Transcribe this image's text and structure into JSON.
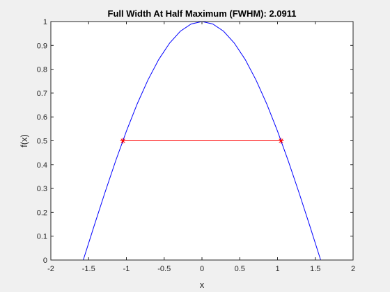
{
  "chart_data": {
    "type": "line",
    "title": "Full Width At Half Maximum (FWHM): 2.0911",
    "xlabel": "x",
    "ylabel": "f(x)",
    "xlim": [
      -2,
      2
    ],
    "ylim": [
      0,
      1
    ],
    "grid": false,
    "legend": "none",
    "x_ticks": [
      -2,
      -1.5,
      -1,
      -0.5,
      0,
      0.5,
      1,
      1.5,
      2
    ],
    "x_tick_labels": [
      "-2",
      "-1.5",
      "-1",
      "-0.5",
      "0",
      "0.5",
      "1",
      "1.5",
      "2"
    ],
    "y_ticks": [
      0,
      0.1,
      0.2,
      0.3,
      0.4,
      0.5,
      0.6,
      0.7,
      0.8,
      0.9,
      1
    ],
    "y_tick_labels": [
      "0",
      "0.1",
      "0.2",
      "0.3",
      "0.4",
      "0.5",
      "0.6",
      "0.7",
      "0.8",
      "0.9",
      "1"
    ],
    "series": [
      {
        "color": "#0000ff",
        "x": [
          -1.5708,
          -1.428,
          -1.2852,
          -1.1424,
          -0.9996,
          -0.8568,
          -0.714,
          -0.5712,
          -0.4284,
          -0.2856,
          -0.1428,
          0.0,
          0.1428,
          0.2856,
          0.4284,
          0.5712,
          0.714,
          0.8568,
          0.9996,
          1.1424,
          1.2852,
          1.428,
          1.5708
        ],
        "y": [
          0.0,
          0.1423,
          0.2817,
          0.4154,
          0.5406,
          0.6549,
          0.7557,
          0.8413,
          0.9096,
          0.9595,
          0.9898,
          1.0,
          0.9898,
          0.9595,
          0.9096,
          0.8413,
          0.7557,
          0.6549,
          0.5406,
          0.4154,
          0.2817,
          0.1423,
          0.0
        ]
      },
      {
        "color": "#ff0000",
        "x": [
          -1.0455,
          1.0455
        ],
        "y": [
          0.5,
          0.5
        ],
        "markers": "asterisk"
      }
    ]
  }
}
